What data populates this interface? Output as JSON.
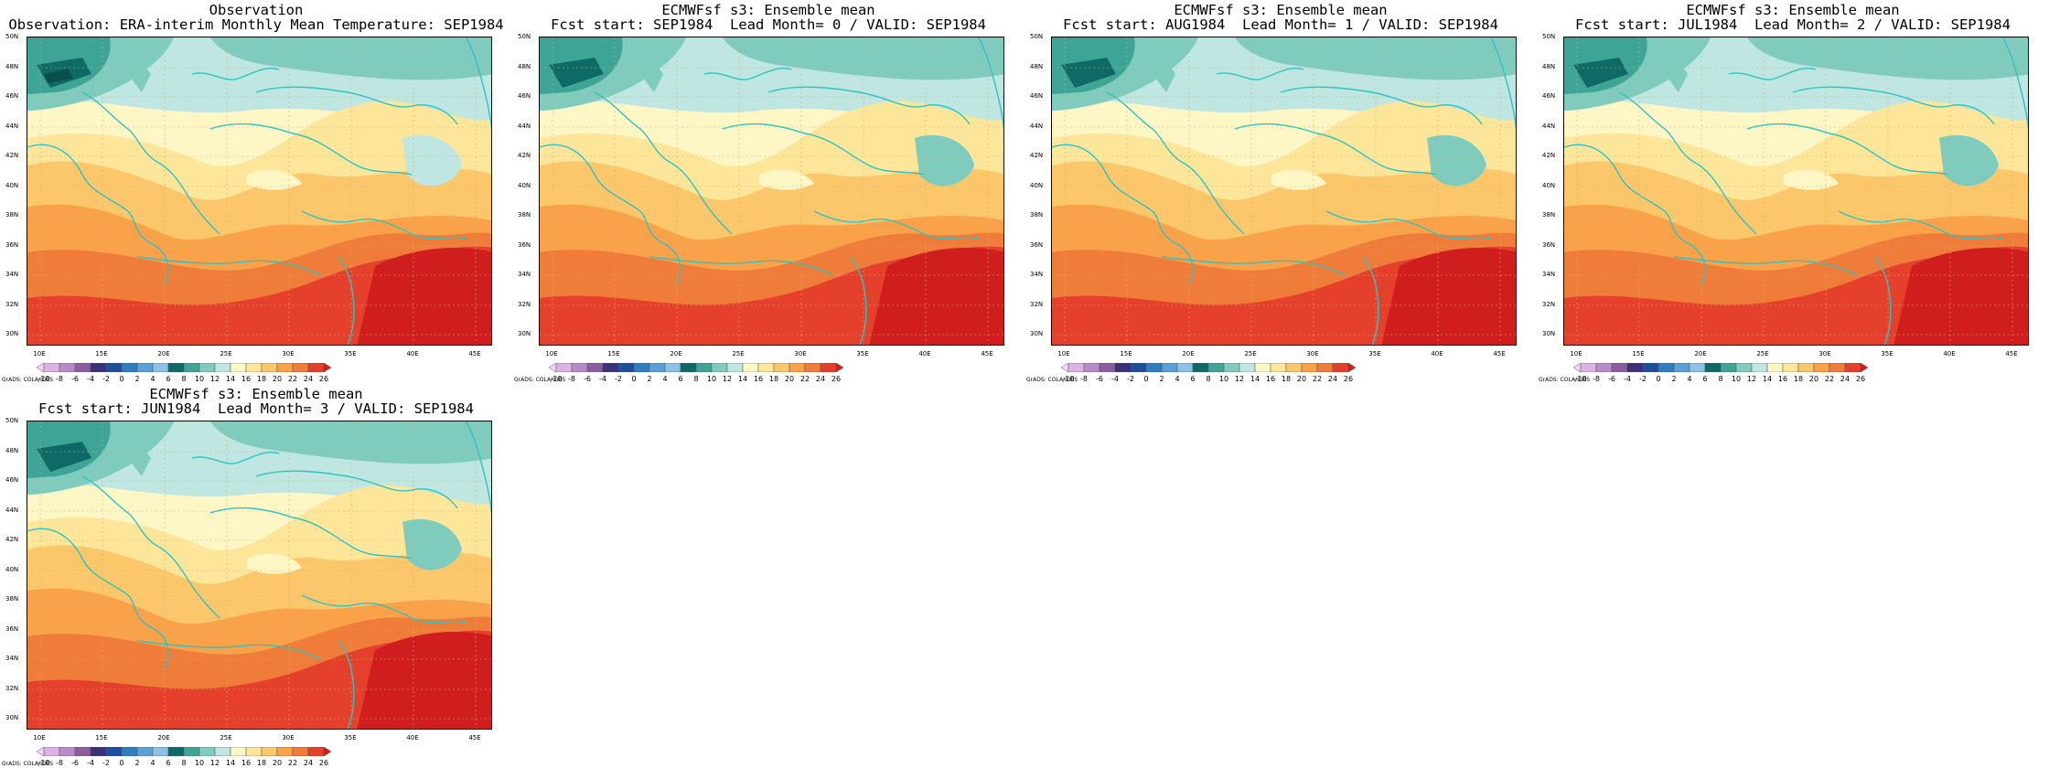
{
  "panels": [
    {
      "title1": "Observation",
      "title2": "Observation: ERA-interim Monthly Mean Temperature: SEP1984"
    },
    {
      "title1": "ECMWFsf s3: Ensemble mean",
      "title2": "Fcst start: SEP1984  Lead Month= 0 / VALID: SEP1984"
    },
    {
      "title1": "ECMWFsf s3: Ensemble mean",
      "title2": "Fcst start: AUG1984  Lead Month= 1 / VALID: SEP1984"
    },
    {
      "title1": "ECMWFsf s3: Ensemble mean",
      "title2": "Fcst start: JUL1984  Lead Month= 2 / VALID: SEP1984"
    },
    {
      "title1": "ECMWFsf s3: Ensemble mean",
      "title2": "Fcst start: JUN1984  Lead Month= 3 / VALID: SEP1984"
    }
  ],
  "lat_labels": [
    "50N",
    "48N",
    "46N",
    "44N",
    "42N",
    "40N",
    "38N",
    "36N",
    "34N",
    "32N",
    "30N"
  ],
  "lon_labels": [
    "10E",
    "15E",
    "20E",
    "25E",
    "30E",
    "35E",
    "40E",
    "45E"
  ],
  "colorbar": {
    "labels": [
      "-10",
      "-8",
      "-6",
      "-4",
      "-2",
      "0",
      "2",
      "4",
      "6",
      "8",
      "10",
      "12",
      "14",
      "16",
      "18",
      "20",
      "22",
      "24",
      "26"
    ],
    "colors": [
      "#f2d8f5",
      "#dcb1e6",
      "#b98ac9",
      "#8a5d9e",
      "#3b2f7c",
      "#1c4f9e",
      "#2f7cc0",
      "#5aa0d6",
      "#8cc2e6",
      "#0d6a66",
      "#3ea596",
      "#7fccbe",
      "#bfe6e0",
      "#fff6c6",
      "#fde69a",
      "#fcc66a",
      "#f9a24a",
      "#f07c3a",
      "#e4402c",
      "#d01d1d"
    ]
  },
  "grads_label": "GrADS: COLA/IGES"
}
